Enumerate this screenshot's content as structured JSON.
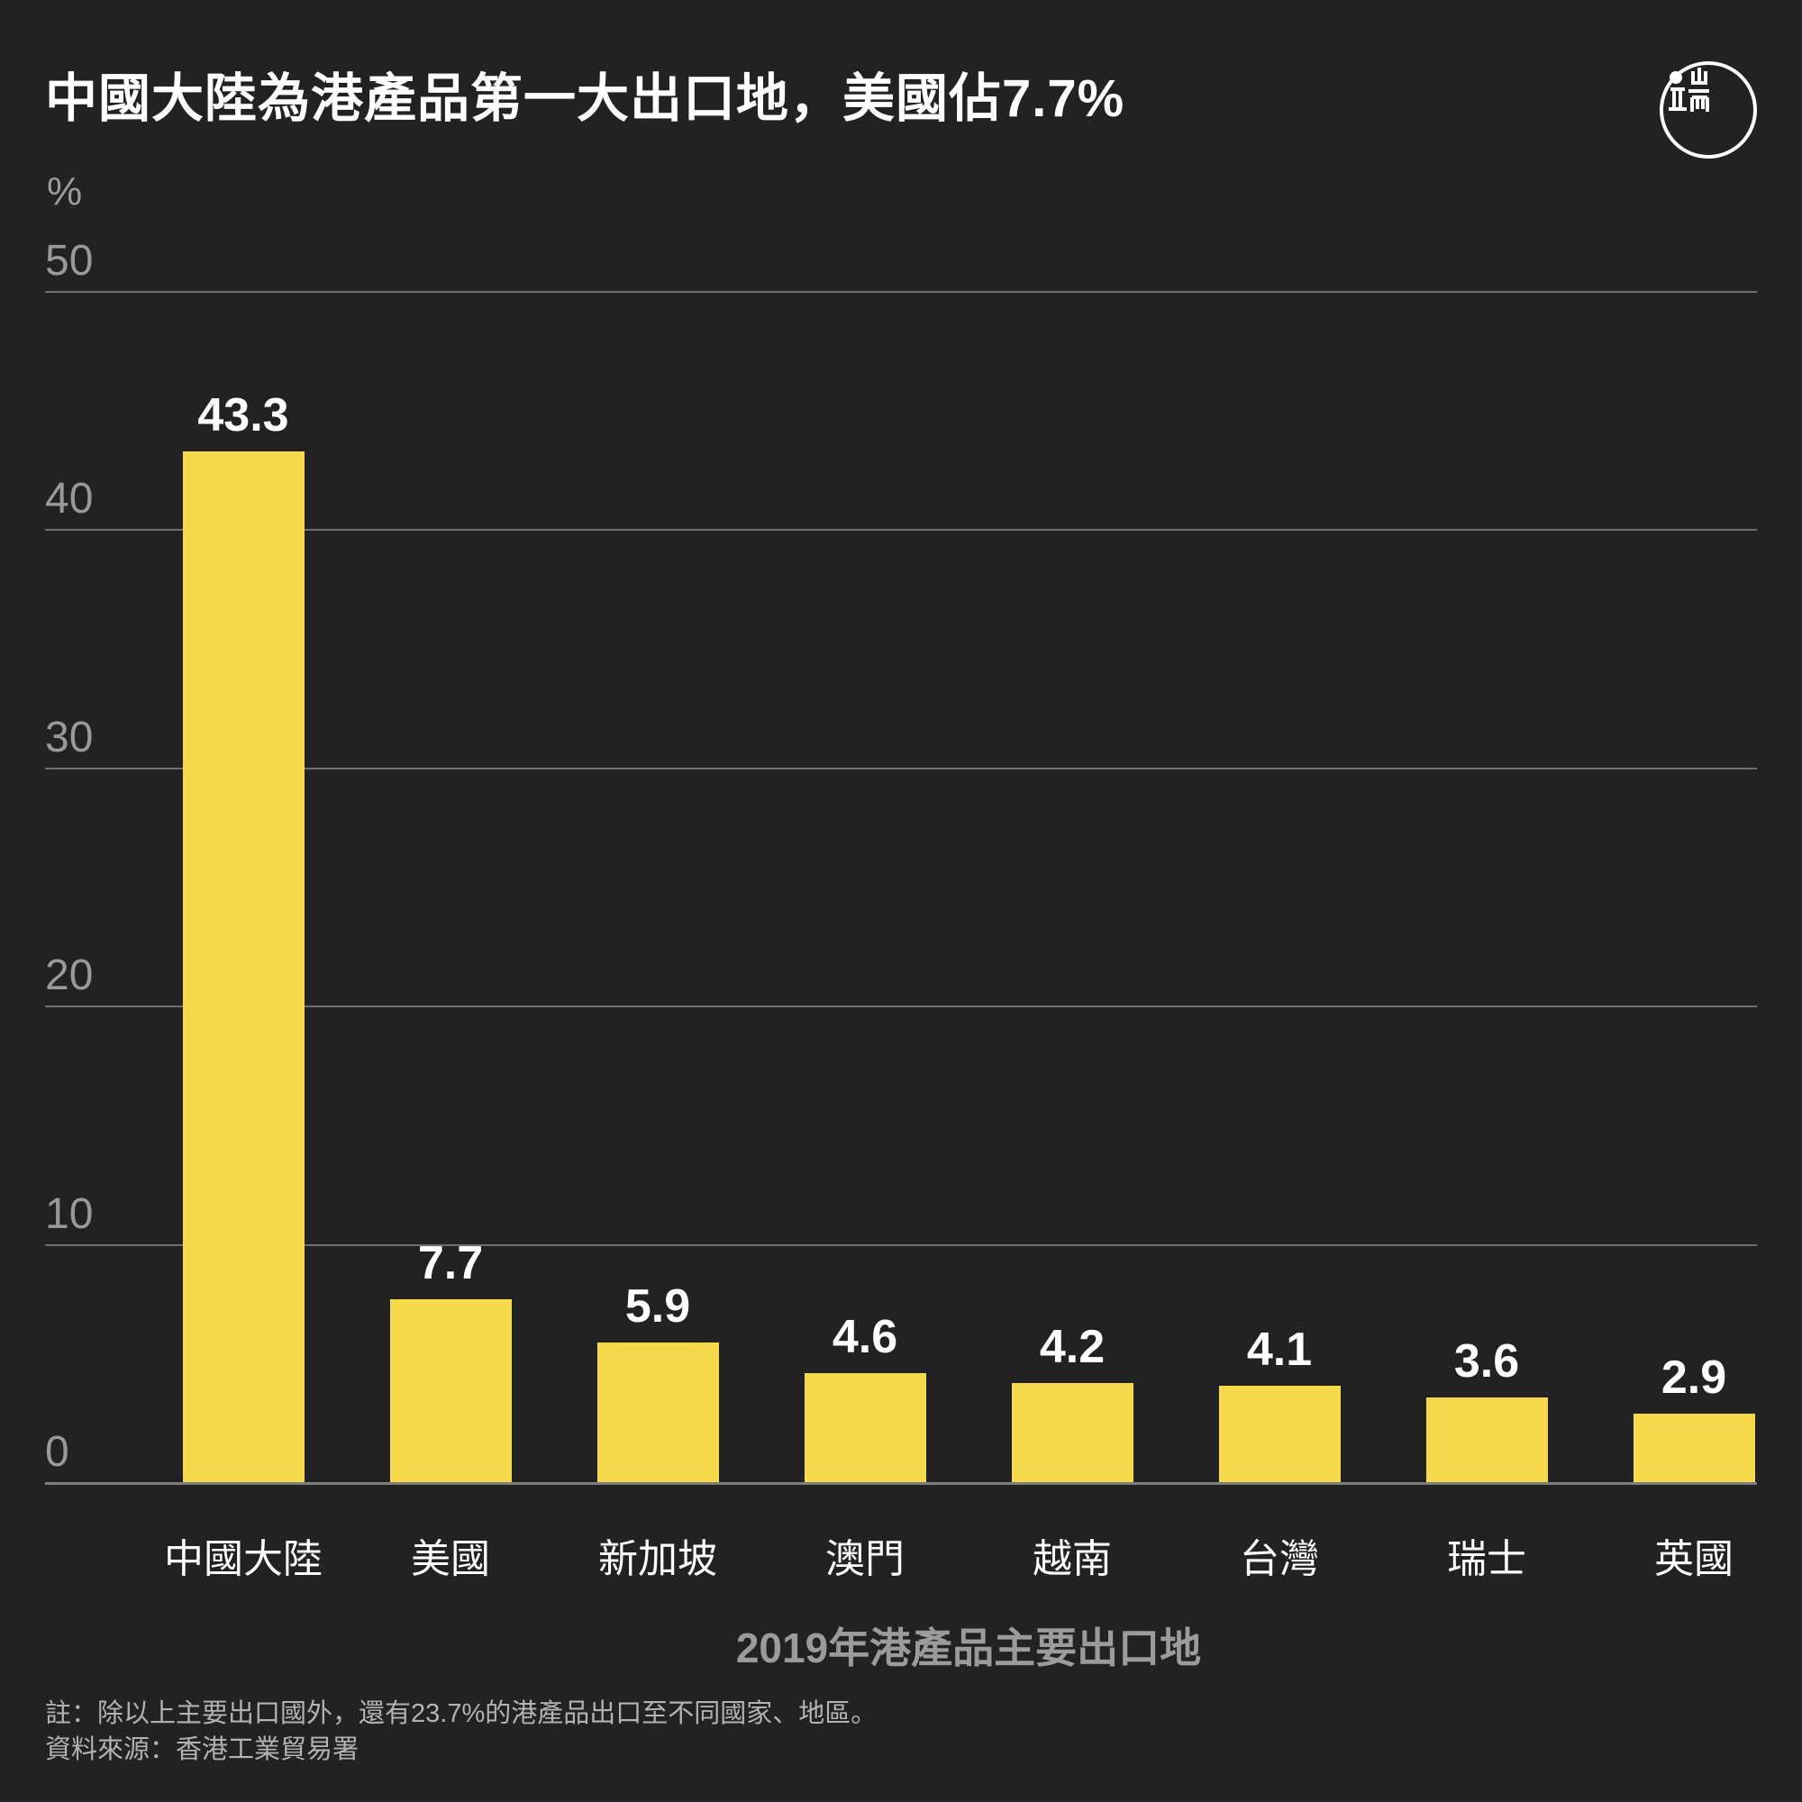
{
  "header": {
    "title": "中國大陸為港產品第一大出口地，美國佔7.7%",
    "logo_icon": "initium-media-logo"
  },
  "chart_data": {
    "type": "bar",
    "title": "中國大陸為港產品第一大出口地，美國佔7.7%",
    "unit_label": "%",
    "categories": [
      "中國大陸",
      "美國",
      "新加坡",
      "澳門",
      "越南",
      "台灣",
      "瑞士",
      "英國"
    ],
    "values": [
      43.3,
      7.7,
      5.9,
      4.6,
      4.2,
      4.1,
      3.6,
      2.9
    ],
    "value_labels": [
      "43.3",
      "7.7",
      "5.9",
      "4.6",
      "4.2",
      "4.1",
      "3.6",
      "2.9"
    ],
    "xlabel": "2019年港產品主要出口地",
    "ylabel": "%",
    "ylim": [
      0,
      50
    ],
    "yticks": [
      50,
      40,
      30,
      20,
      10,
      0
    ],
    "grid": true,
    "legend": false,
    "bar_color": "#f6da4c"
  },
  "footer": {
    "note": "註：除以上主要出口國外，還有23.7%的港產品出口至不同國家、地區。",
    "source": "資料來源：香港工業貿易署"
  },
  "colors": {
    "background": "#222222",
    "bar": "#f6da4c",
    "gridline": "#6f6f6f",
    "baseline": "#7d7d7d",
    "tick_text": "#999999",
    "value_text": "#ffffff",
    "category_text": "#ffffff",
    "axis_title_text": "#9b9b9b",
    "note_text": "#b3b3b3",
    "title_text": "#ffffff",
    "logo": "#ffffff"
  }
}
